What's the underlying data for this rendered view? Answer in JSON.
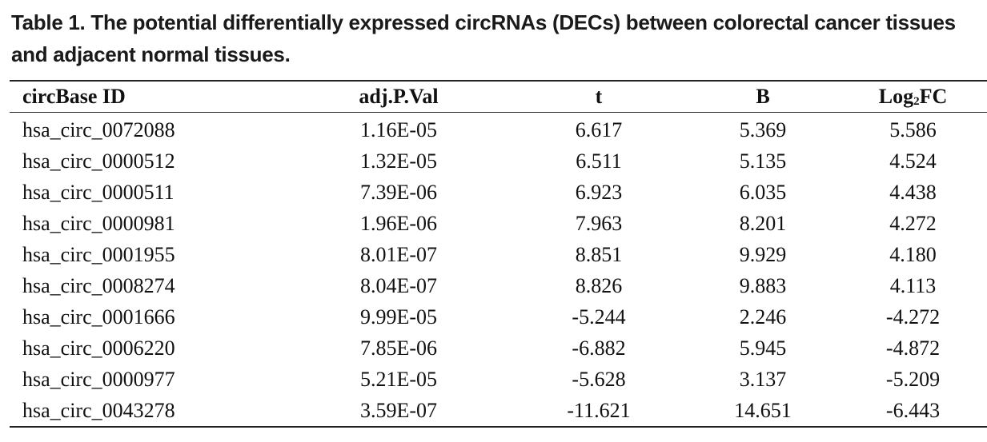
{
  "caption": "Table 1. The potential differentially expressed circRNAs (DECs) between colorectal cancer tissues and adjacent normal tissues.",
  "table": {
    "headers": {
      "id": "circBase ID",
      "pval": "adj.P.Val",
      "t": "t",
      "b": "B",
      "logfc_prefix": "Log",
      "logfc_sub": "2",
      "logfc_suffix": "FC"
    },
    "rows": [
      [
        "hsa_circ_0072088",
        "1.16E-05",
        "6.617",
        "5.369",
        "5.586"
      ],
      [
        "hsa_circ_0000512",
        "1.32E-05",
        "6.511",
        "5.135",
        "4.524"
      ],
      [
        "hsa_circ_0000511",
        "7.39E-06",
        "6.923",
        "6.035",
        "4.438"
      ],
      [
        "hsa_circ_0000981",
        "1.96E-06",
        "7.963",
        "8.201",
        "4.272"
      ],
      [
        "hsa_circ_0001955",
        "8.01E-07",
        "8.851",
        "9.929",
        "4.180"
      ],
      [
        "hsa_circ_0008274",
        "8.04E-07",
        "8.826",
        "9.883",
        "4.113"
      ],
      [
        "hsa_circ_0001666",
        "9.99E-05",
        "-5.244",
        "2.246",
        "-4.272"
      ],
      [
        "hsa_circ_0006220",
        "7.85E-06",
        "-6.882",
        "5.945",
        "-4.872"
      ],
      [
        "hsa_circ_0000977",
        "5.21E-05",
        "-5.628",
        "3.137",
        "-5.209"
      ],
      [
        "hsa_circ_0043278",
        "3.59E-07",
        "-11.621",
        "14.651",
        "-6.443"
      ]
    ]
  }
}
